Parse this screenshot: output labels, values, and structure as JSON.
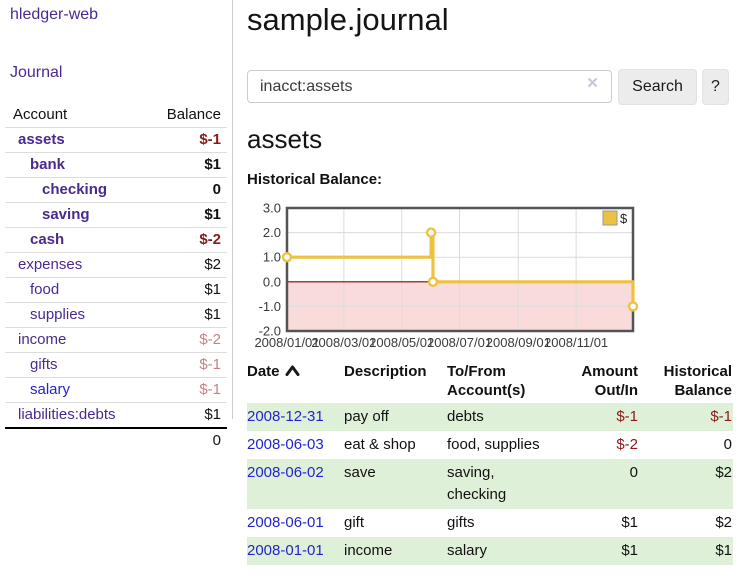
{
  "app": {
    "brand": "hledger-web",
    "nav_journal": "Journal"
  },
  "theme": {
    "link_purple": "#4a2a8f",
    "link_blue": "#2424cc",
    "negative_strong": "#8b1a1a",
    "negative_weak": "#c38388",
    "row_highlight_green": "#dff0d8",
    "series_gold": "#edc240",
    "negative_zone_pink": "#f9dbdb"
  },
  "sidebar": {
    "header": {
      "account": "Account",
      "balance": "Balance"
    },
    "accounts": [
      {
        "name": "assets",
        "depth": 1,
        "bold": true,
        "balance": "$-1",
        "neg": "strong"
      },
      {
        "name": "bank",
        "depth": 2,
        "bold": true,
        "balance": "$1",
        "neg": "none"
      },
      {
        "name": "checking",
        "depth": 3,
        "bold": true,
        "balance": "0",
        "neg": "none"
      },
      {
        "name": "saving",
        "depth": 3,
        "bold": true,
        "balance": "$1",
        "neg": "none"
      },
      {
        "name": "cash",
        "depth": 2,
        "bold": true,
        "balance": "$-2",
        "neg": "strong"
      },
      {
        "name": "expenses",
        "depth": 1,
        "bold": false,
        "balance": "$2",
        "neg": "none"
      },
      {
        "name": "food",
        "depth": 2,
        "bold": false,
        "balance": "$1",
        "neg": "none"
      },
      {
        "name": "supplies",
        "depth": 2,
        "bold": false,
        "balance": "$1",
        "neg": "none"
      },
      {
        "name": "income",
        "depth": 1,
        "bold": false,
        "balance": "$-2",
        "neg": "weak"
      },
      {
        "name": "gifts",
        "depth": 2,
        "bold": false,
        "balance": "$-1",
        "neg": "weak"
      },
      {
        "name": "salary",
        "depth": 2,
        "bold": false,
        "balance": "$-1",
        "neg": "weak",
        "link_color": "blue"
      },
      {
        "name": "liabilities:debts",
        "depth": 1,
        "bold": false,
        "balance": "$1",
        "neg": "none"
      }
    ],
    "total": "0"
  },
  "header": {
    "title": "sample.journal"
  },
  "search": {
    "value": "inacct:assets",
    "clear_icon": "×",
    "button": "Search",
    "help": "?"
  },
  "account_page": {
    "title": "assets",
    "chart_label": "Historical Balance:"
  },
  "chart_data": {
    "type": "line",
    "title": "Historical Balance",
    "legend": {
      "label": "$",
      "position": "top-right"
    },
    "series": [
      {
        "name": "$",
        "color": "#edc240",
        "step": true,
        "marker": "circle",
        "points": [
          {
            "x": "2008-01-01",
            "y": 1
          },
          {
            "x": "2008-06-01",
            "y": 2
          },
          {
            "x": "2008-06-03",
            "y": 0
          },
          {
            "x": "2008-12-31",
            "y": -1
          }
        ]
      }
    ],
    "xlim": [
      "2008-01-01",
      "2008-12-31"
    ],
    "ylim": [
      -2,
      3
    ],
    "yticks": [
      {
        "value": 3,
        "label": "3.0"
      },
      {
        "value": 2,
        "label": "2.0"
      },
      {
        "value": 1,
        "label": "1.0"
      },
      {
        "value": 0,
        "label": "0.0"
      },
      {
        "value": -1,
        "label": "-1.0"
      },
      {
        "value": -2,
        "label": "-2.0"
      }
    ],
    "xticks": [
      {
        "value": "2008-01-01",
        "label": "2008/01/01"
      },
      {
        "value": "2008-03-01",
        "label": "2008/03/01"
      },
      {
        "value": "2008-05-01",
        "label": "2008/05/01"
      },
      {
        "value": "2008-07-01",
        "label": "2008/07/01"
      },
      {
        "value": "2008-09-01",
        "label": "2008/09/01"
      },
      {
        "value": "2008-11-01",
        "label": "2008/11/01"
      }
    ],
    "negative_region": {
      "from": 0,
      "to": -2,
      "fill": "#f9dbdb",
      "zero_line_color": "#8b0000"
    },
    "grid_color": "#dcdcdc",
    "border_color": "#545454",
    "tick_label_color": "#3a3a3a"
  },
  "register": {
    "headers": [
      "Date",
      "Description",
      "To/From Account(s)",
      "Amount Out/In",
      "Historical Balance"
    ],
    "sort": {
      "column": "Date",
      "direction": "ascending"
    },
    "rows": [
      {
        "date": "2008-12-31",
        "description": "pay off",
        "accounts": "debts",
        "amount": "$-1",
        "amount_neg": true,
        "balance": "$-1",
        "balance_neg": true
      },
      {
        "date": "2008-06-03",
        "description": "eat & shop",
        "accounts": "food, supplies",
        "amount": "$-2",
        "amount_neg": true,
        "balance": "0",
        "balance_neg": false
      },
      {
        "date": "2008-06-02",
        "description": "save",
        "accounts": "saving, checking",
        "amount": "0",
        "amount_neg": false,
        "balance": "$2",
        "balance_neg": false
      },
      {
        "date": "2008-06-01",
        "description": "gift",
        "accounts": "gifts",
        "amount": "$1",
        "amount_neg": false,
        "balance": "$2",
        "balance_neg": false
      },
      {
        "date": "2008-01-01",
        "description": "income",
        "accounts": "salary",
        "amount": "$1",
        "amount_neg": false,
        "balance": "$1",
        "balance_neg": false
      }
    ]
  }
}
